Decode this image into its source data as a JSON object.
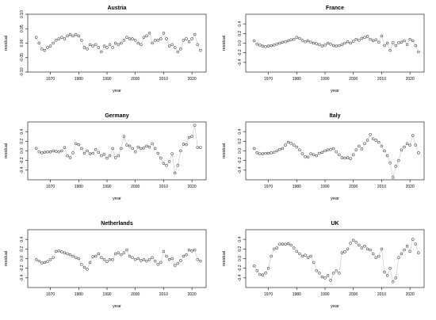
{
  "chart_data": [
    {
      "type": "scatter",
      "title": "Austria",
      "xlabel": "year",
      "ylabel": "residual",
      "xlim": [
        1962,
        2025
      ],
      "ylim": [
        -0.1,
        0.1
      ],
      "xticks": [
        1970,
        1980,
        1990,
        2000,
        2010,
        2020
      ],
      "yticks": [
        -0.1,
        -0.05,
        0.0,
        0.05,
        0.1
      ],
      "ytick_labels": [
        "-0.10",
        "-0.05",
        "0.00",
        "0.05",
        "0.10"
      ],
      "connected": true,
      "x": [
        1965,
        1966,
        1967,
        1968,
        1969,
        1970,
        1971,
        1972,
        1973,
        1974,
        1975,
        1976,
        1977,
        1978,
        1979,
        1980,
        1981,
        1982,
        1983,
        1984,
        1985,
        1986,
        1987,
        1988,
        1989,
        1990,
        1991,
        1992,
        1993,
        1994,
        1995,
        1996,
        1997,
        1998,
        1999,
        2000,
        2001,
        2002,
        2003,
        2004,
        2005,
        2006,
        2007,
        2008,
        2009,
        2010,
        2011,
        2012,
        2013,
        2014,
        2015,
        2016,
        2017,
        2018,
        2019,
        2020,
        2021,
        2022,
        2023
      ],
      "y": [
        0.02,
        0.0,
        -0.02,
        -0.025,
        -0.015,
        -0.01,
        0.0,
        0.01,
        0.015,
        0.02,
        0.015,
        0.025,
        0.03,
        0.025,
        0.03,
        0.025,
        0.01,
        -0.015,
        -0.02,
        -0.005,
        -0.01,
        -0.005,
        -0.015,
        -0.03,
        -0.01,
        -0.015,
        -0.005,
        -0.015,
        0.0,
        -0.005,
        0.0,
        0.01,
        0.02,
        0.015,
        0.015,
        0.01,
        0.0,
        -0.005,
        0.02,
        0.025,
        0.035,
        0.0,
        0.01,
        0.01,
        0.015,
        0.035,
        0.015,
        -0.01,
        -0.005,
        -0.015,
        -0.03,
        -0.02,
        0.01,
        0.015,
        0.005,
        0.015,
        0.03,
        -0.005,
        -0.025
      ]
    },
    {
      "type": "scatter",
      "title": "France",
      "xlabel": "year",
      "ylabel": "residual",
      "xlim": [
        1962,
        2025
      ],
      "ylim": [
        -0.6,
        0.6
      ],
      "xticks": [
        1970,
        1980,
        1990,
        2000,
        2010,
        2020
      ],
      "yticks": [
        -0.4,
        -0.2,
        0.0,
        0.2,
        0.4
      ],
      "ytick_labels": [
        "-0.4",
        "-0.2",
        "0.0",
        "0.2",
        "0.4"
      ],
      "connected": true,
      "x": [
        1965,
        1966,
        1967,
        1968,
        1969,
        1970,
        1971,
        1972,
        1973,
        1974,
        1975,
        1976,
        1977,
        1978,
        1979,
        1980,
        1981,
        1982,
        1983,
        1984,
        1985,
        1986,
        1987,
        1988,
        1989,
        1990,
        1991,
        1992,
        1993,
        1994,
        1995,
        1996,
        1997,
        1998,
        1999,
        2000,
        2001,
        2002,
        2003,
        2004,
        2005,
        2006,
        2007,
        2008,
        2009,
        2010,
        2011,
        2012,
        2013,
        2014,
        2015,
        2016,
        2017,
        2018,
        2019,
        2020,
        2021,
        2022,
        2023
      ],
      "y": [
        0.05,
        -0.02,
        -0.04,
        -0.06,
        -0.07,
        -0.06,
        -0.05,
        -0.04,
        -0.02,
        0.0,
        0.02,
        0.03,
        0.05,
        0.07,
        0.08,
        0.12,
        0.1,
        0.06,
        0.03,
        0.05,
        0.02,
        0.0,
        -0.01,
        -0.03,
        -0.06,
        -0.04,
        0.0,
        -0.02,
        -0.05,
        -0.06,
        -0.05,
        -0.03,
        0.0,
        0.03,
        0.0,
        0.04,
        0.08,
        0.06,
        0.1,
        0.12,
        0.14,
        0.08,
        0.05,
        0.07,
        0.02,
        0.15,
        -0.05,
        0.0,
        -0.15,
        0.01,
        -0.05,
        0.01,
        0.02,
        0.05,
        -0.03,
        0.08,
        0.05,
        -0.05,
        -0.18
      ]
    },
    {
      "type": "scatter",
      "title": "Germany",
      "xlabel": "year",
      "ylabel": "residual",
      "xlim": [
        1962,
        2025
      ],
      "ylim": [
        -0.6,
        0.6
      ],
      "xticks": [
        1970,
        1980,
        1990,
        2000,
        2010,
        2020
      ],
      "yticks": [
        -0.4,
        -0.2,
        0.0,
        0.2,
        0.4
      ],
      "ytick_labels": [
        "-0.4",
        "-0.2",
        "0.0",
        "0.2",
        "0.4"
      ],
      "connected": true,
      "x": [
        1965,
        1966,
        1967,
        1968,
        1969,
        1970,
        1971,
        1972,
        1973,
        1974,
        1975,
        1976,
        1977,
        1978,
        1979,
        1980,
        1981,
        1982,
        1983,
        1984,
        1985,
        1986,
        1987,
        1988,
        1989,
        1990,
        1991,
        1992,
        1993,
        1994,
        1995,
        1996,
        1997,
        1998,
        1999,
        2000,
        2001,
        2002,
        2003,
        2004,
        2005,
        2006,
        2007,
        2008,
        2009,
        2010,
        2011,
        2012,
        2013,
        2014,
        2015,
        2016,
        2017,
        2018,
        2019,
        2020,
        2021,
        2022,
        2023
      ],
      "y": [
        0.05,
        -0.02,
        -0.04,
        -0.03,
        -0.02,
        -0.02,
        0.0,
        -0.01,
        -0.02,
        0.0,
        0.07,
        -0.1,
        -0.14,
        -0.04,
        0.15,
        0.13,
        0.05,
        -0.05,
        0.0,
        -0.06,
        -0.05,
        0.03,
        -0.03,
        -0.1,
        -0.07,
        -0.15,
        -0.1,
        0.05,
        -0.14,
        -0.1,
        0.05,
        0.3,
        0.12,
        0.1,
        0.05,
        -0.02,
        0.08,
        0.05,
        0.06,
        0.1,
        0.08,
        0.15,
        0.05,
        -0.05,
        -0.15,
        -0.26,
        -0.3,
        -0.22,
        -0.06,
        -0.46,
        -0.3,
        0.0,
        0.14,
        0.13,
        0.28,
        0.3,
        0.53,
        0.07,
        0.07
      ]
    },
    {
      "type": "scatter",
      "title": "Italy",
      "xlabel": "year",
      "ylabel": "residual",
      "xlim": [
        1962,
        2025
      ],
      "ylim": [
        -0.6,
        0.6
      ],
      "xticks": [
        1970,
        1980,
        1990,
        2000,
        2010,
        2020
      ],
      "yticks": [
        -0.4,
        -0.2,
        0.0,
        0.2,
        0.4
      ],
      "ytick_labels": [
        "-0.4",
        "-0.2",
        "0.0",
        "0.2",
        "0.4"
      ],
      "connected": true,
      "x": [
        1965,
        1966,
        1967,
        1968,
        1969,
        1970,
        1971,
        1972,
        1973,
        1974,
        1975,
        1976,
        1977,
        1978,
        1979,
        1980,
        1981,
        1982,
        1983,
        1984,
        1985,
        1986,
        1987,
        1988,
        1989,
        1990,
        1991,
        1992,
        1993,
        1994,
        1995,
        1996,
        1997,
        1998,
        1999,
        2000,
        2001,
        2002,
        2003,
        2004,
        2005,
        2006,
        2007,
        2008,
        2009,
        2010,
        2011,
        2012,
        2013,
        2014,
        2015,
        2016,
        2017,
        2018,
        2019,
        2020,
        2021,
        2022,
        2023
      ],
      "y": [
        0.05,
        -0.04,
        -0.06,
        -0.06,
        -0.05,
        -0.05,
        -0.04,
        -0.03,
        0.0,
        0.03,
        0.05,
        0.12,
        0.18,
        0.16,
        0.12,
        0.08,
        0.02,
        -0.06,
        -0.12,
        -0.13,
        -0.06,
        -0.08,
        -0.1,
        -0.05,
        -0.03,
        0.0,
        0.02,
        0.03,
        0.05,
        -0.02,
        -0.08,
        -0.14,
        -0.15,
        -0.14,
        -0.16,
        -0.08,
        0.02,
        0.1,
        0.04,
        0.15,
        0.22,
        0.34,
        0.25,
        0.22,
        0.18,
        0.1,
        0.0,
        -0.1,
        -0.25,
        -0.55,
        -0.32,
        -0.2,
        0.02,
        0.08,
        0.15,
        0.12,
        0.32,
        0.12,
        -0.04
      ]
    },
    {
      "type": "scatter",
      "title": "Netherlands",
      "xlabel": "year",
      "ylabel": "residual",
      "xlim": [
        1962,
        2025
      ],
      "ylim": [
        -0.6,
        0.6
      ],
      "xticks": [
        1970,
        1980,
        1990,
        2000,
        2010,
        2020
      ],
      "yticks": [
        -0.4,
        -0.2,
        0.0,
        0.2,
        0.4
      ],
      "ytick_labels": [
        "-0.4",
        "-0.2",
        "0.0",
        "0.2",
        "0.4"
      ],
      "connected": true,
      "x": [
        1965,
        1966,
        1967,
        1968,
        1969,
        1970,
        1971,
        1972,
        1973,
        1974,
        1975,
        1976,
        1977,
        1978,
        1979,
        1980,
        1981,
        1982,
        1983,
        1984,
        1985,
        1986,
        1987,
        1988,
        1989,
        1990,
        1991,
        1992,
        1993,
        1994,
        1995,
        1996,
        1997,
        1998,
        1999,
        2000,
        2001,
        2002,
        2003,
        2004,
        2005,
        2006,
        2007,
        2008,
        2009,
        2010,
        2011,
        2012,
        2013,
        2014,
        2015,
        2016,
        2017,
        2018,
        2019,
        2020,
        2021,
        2022,
        2023
      ],
      "y": [
        -0.02,
        -0.05,
        -0.09,
        -0.08,
        -0.06,
        -0.02,
        0.02,
        0.15,
        0.16,
        0.14,
        0.12,
        0.1,
        0.08,
        0.05,
        0.02,
        0.0,
        -0.12,
        -0.18,
        -0.22,
        -0.08,
        0.04,
        0.05,
        0.1,
        0.02,
        -0.02,
        -0.06,
        -0.02,
        -0.02,
        0.1,
        0.12,
        0.08,
        0.12,
        0.18,
        0.05,
        0.02,
        -0.02,
        0.0,
        -0.04,
        -0.02,
        -0.05,
        -0.02,
        0.02,
        -0.05,
        -0.12,
        -0.08,
        0.15,
        0.05,
        -0.02,
        0.0,
        -0.14,
        -0.1,
        -0.04,
        0.05,
        0.08,
        0.18,
        0.16,
        0.18,
        -0.02,
        -0.05
      ]
    },
    {
      "type": "scatter",
      "title": "UK",
      "xlabel": "year",
      "ylabel": "residual",
      "xlim": [
        1962,
        2025
      ],
      "ylim": [
        -0.6,
        0.6
      ],
      "xticks": [
        1970,
        1980,
        1990,
        2000,
        2010,
        2020
      ],
      "yticks": [
        -0.4,
        -0.2,
        0.0,
        0.2,
        0.4
      ],
      "ytick_labels": [
        "-0.4",
        "-0.2",
        "0.0",
        "0.2",
        "0.4"
      ],
      "connected": true,
      "x": [
        1965,
        1966,
        1967,
        1968,
        1969,
        1970,
        1971,
        1972,
        1973,
        1974,
        1975,
        1976,
        1977,
        1978,
        1979,
        1980,
        1981,
        1982,
        1983,
        1984,
        1985,
        1986,
        1987,
        1988,
        1989,
        1990,
        1991,
        1992,
        1993,
        1994,
        1995,
        1996,
        1997,
        1998,
        1999,
        2000,
        2001,
        2002,
        2003,
        2004,
        2005,
        2006,
        2007,
        2008,
        2009,
        2010,
        2011,
        2012,
        2013,
        2014,
        2015,
        2016,
        2017,
        2018,
        2019,
        2020,
        2021,
        2022,
        2023
      ],
      "y": [
        -0.15,
        -0.25,
        -0.33,
        -0.34,
        -0.3,
        -0.2,
        0.05,
        0.2,
        0.22,
        0.3,
        0.3,
        0.3,
        0.31,
        0.28,
        0.22,
        0.15,
        0.1,
        0.05,
        0.07,
        0.02,
        0.05,
        -0.08,
        -0.25,
        -0.3,
        -0.38,
        -0.4,
        -0.35,
        -0.45,
        -0.3,
        -0.25,
        -0.3,
        0.12,
        0.14,
        0.2,
        0.32,
        0.38,
        0.34,
        0.28,
        0.22,
        0.26,
        0.2,
        0.18,
        0.1,
        0.02,
        0.05,
        0.2,
        -0.28,
        -0.35,
        -0.2,
        -0.48,
        -0.4,
        0.02,
        0.1,
        0.18,
        0.26,
        0.15,
        0.4,
        0.3,
        0.12
      ]
    }
  ]
}
